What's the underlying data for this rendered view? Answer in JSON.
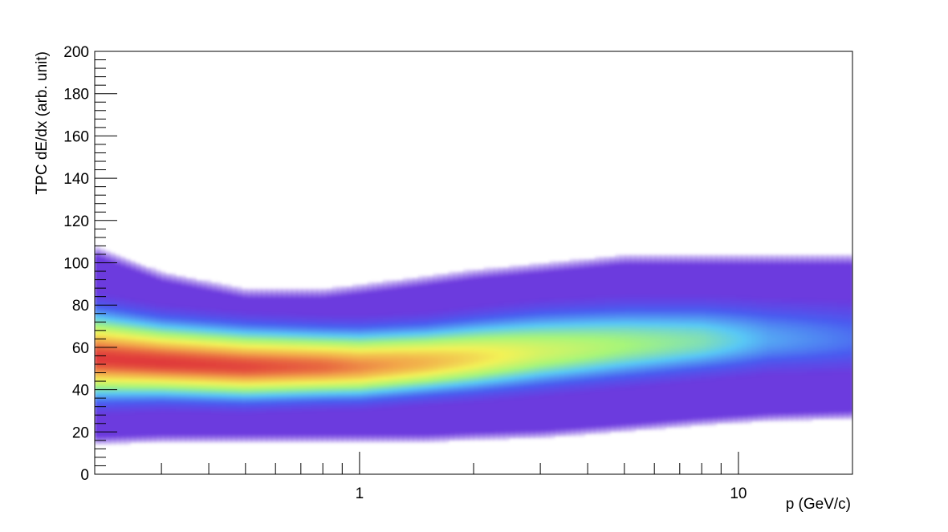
{
  "chart_data": {
    "type": "heatmap",
    "title": "",
    "xlabel": "p (GeV/c)",
    "ylabel": "TPC dE/dx (arb. unit)",
    "x_scale": "log",
    "xlim": [
      0.2,
      20
    ],
    "ylim": [
      0,
      200
    ],
    "x_tick_labels": [
      {
        "value": 1,
        "label": "1"
      },
      {
        "value": 10,
        "label": "10"
      }
    ],
    "y_tick_labels": [
      {
        "value": 0,
        "label": "0"
      },
      {
        "value": 20,
        "label": "20"
      },
      {
        "value": 40,
        "label": "40"
      },
      {
        "value": 60,
        "label": "60"
      },
      {
        "value": 80,
        "label": "80"
      },
      {
        "value": 100,
        "label": "100"
      },
      {
        "value": 120,
        "label": "120"
      },
      {
        "value": 140,
        "label": "140"
      },
      {
        "value": 160,
        "label": "160"
      },
      {
        "value": 180,
        "label": "180"
      },
      {
        "value": 200,
        "label": "200"
      }
    ],
    "grid": false,
    "colorscale": [
      "#7b2bd6",
      "#4a5cf0",
      "#59c8f5",
      "#a6f57a",
      "#f2f257",
      "#f2a64a",
      "#e03a3a"
    ],
    "band_profile": [
      {
        "p": 0.2,
        "center": 55,
        "width": 24,
        "outer_lo": 14,
        "outer_hi": 108,
        "intensity": 1.0
      },
      {
        "p": 0.3,
        "center": 53,
        "width": 21,
        "outer_lo": 15,
        "outer_hi": 96,
        "intensity": 1.0
      },
      {
        "p": 0.5,
        "center": 51,
        "width": 20,
        "outer_lo": 15,
        "outer_hi": 88,
        "intensity": 0.98
      },
      {
        "p": 0.8,
        "center": 51,
        "width": 19,
        "outer_lo": 15,
        "outer_hi": 88,
        "intensity": 0.93
      },
      {
        "p": 1.0,
        "center": 51,
        "width": 19,
        "outer_lo": 15,
        "outer_hi": 90,
        "intensity": 0.88
      },
      {
        "p": 1.5,
        "center": 53,
        "width": 19,
        "outer_lo": 15,
        "outer_hi": 94,
        "intensity": 0.8
      },
      {
        "p": 2.0,
        "center": 55,
        "width": 20,
        "outer_lo": 16,
        "outer_hi": 97,
        "intensity": 0.72
      },
      {
        "p": 3.0,
        "center": 58,
        "width": 21,
        "outer_lo": 17,
        "outer_hi": 100,
        "intensity": 0.6
      },
      {
        "p": 5.0,
        "center": 61,
        "width": 21,
        "outer_lo": 20,
        "outer_hi": 104,
        "intensity": 0.5
      },
      {
        "p": 8.0,
        "center": 63,
        "width": 20,
        "outer_lo": 23,
        "outer_hi": 104,
        "intensity": 0.42
      },
      {
        "p": 12.0,
        "center": 64,
        "width": 20,
        "outer_lo": 25,
        "outer_hi": 104,
        "intensity": 0.28
      },
      {
        "p": 20.0,
        "center": 64,
        "width": 21,
        "outer_lo": 26,
        "outer_hi": 104,
        "intensity": 0.2
      }
    ]
  }
}
